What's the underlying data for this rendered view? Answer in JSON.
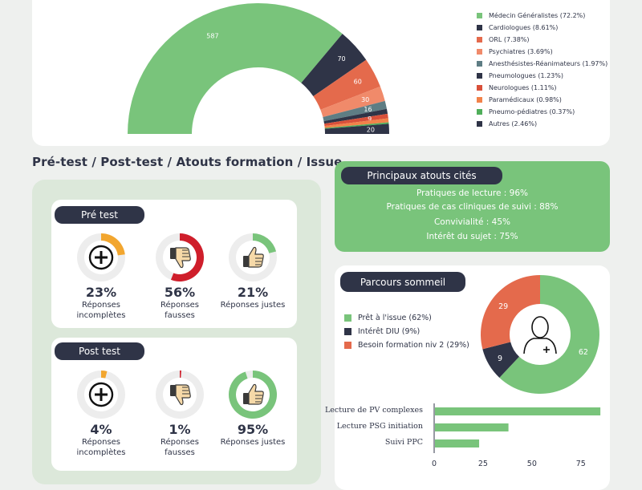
{
  "colors": {
    "green": "#79c47b",
    "navy": "#2f3447",
    "orange_red": "#e46a4c",
    "salmon": "#f08a6a",
    "grey_blue": "#5e7d84",
    "red": "#d9503a",
    "amber": "#f2a62f",
    "crimson": "#cf1e2b",
    "panel_green": "#dce8da"
  },
  "specialty": {
    "legend": [
      {
        "label": "Médecin Généralistes (72.2%)",
        "color": "#79c47b"
      },
      {
        "label": "Cardiologues (8.61%)",
        "color": "#2f3447"
      },
      {
        "label": "ORL (7.38%)",
        "color": "#e46a4c"
      },
      {
        "label": "Psychiatres (3.69%)",
        "color": "#f08a6a"
      },
      {
        "label": "Anesthésistes-Réanimateurs (1.97%)",
        "color": "#5e7d84"
      },
      {
        "label": "Pneumologues (1.23%)",
        "color": "#2f3447"
      },
      {
        "label": "Neurologues (1.11%)",
        "color": "#d9503a"
      },
      {
        "label": "Paramédicaux (0.98%)",
        "color": "#f2824a"
      },
      {
        "label": "Pneumo-pédiatres (0.37%)",
        "color": "#4fae5a"
      },
      {
        "label": "Autres (2.46%)",
        "color": "#2f3447"
      }
    ]
  },
  "section_title": "Pré-test / Post-test / Atouts formation / Issue",
  "pretest": {
    "title": "Pré test",
    "stats": [
      {
        "pct": "23%",
        "label1": "Réponses",
        "label2": "incomplètes",
        "icon": "plus-icon"
      },
      {
        "pct": "56%",
        "label1": "Réponses",
        "label2": "fausses",
        "icon": "thumbs-down-icon"
      },
      {
        "pct": "21%",
        "label1": "Réponses justes",
        "label2": "",
        "icon": "thumbs-up-icon"
      }
    ]
  },
  "posttest": {
    "title": "Post test",
    "stats": [
      {
        "pct": "4%",
        "label1": "Réponses",
        "label2": "incomplètes",
        "icon": "plus-icon"
      },
      {
        "pct": "1%",
        "label1": "Réponses",
        "label2": "fausses",
        "icon": "thumbs-down-icon"
      },
      {
        "pct": "95%",
        "label1": "Réponses justes",
        "label2": "",
        "icon": "thumbs-up-icon"
      }
    ]
  },
  "atouts": {
    "title": "Principaux atouts cités",
    "lines": [
      "Pratiques de lecture : 96%",
      "Pratiques de cas cliniques de suivi : 88%",
      "Convivialité : 45%",
      "Intérêt du sujet : 75%"
    ]
  },
  "parcours": {
    "title": "Parcours sommeil",
    "legend": [
      {
        "label": "Prêt à l'issue (62%)",
        "color": "#79c47b"
      },
      {
        "label": "Intérêt DIU (9%)",
        "color": "#2f3447"
      },
      {
        "label": "Besoin formation niv 2 (29%)",
        "color": "#e46a4c"
      }
    ]
  },
  "chart_data": [
    {
      "type": "pie",
      "subtype": "half-donut",
      "categories": [
        "Médecin Généralistes",
        "Cardiologues",
        "ORL",
        "Psychiatres",
        "Anesthésistes-Réanimateurs",
        "Pneumologues",
        "Neurologues",
        "Paramédicaux",
        "Pneumo-pédiatres",
        "Autres"
      ],
      "values": [
        587,
        70,
        60,
        30,
        16,
        10,
        9,
        8,
        3,
        20
      ],
      "labels": [
        "587",
        "70",
        "60",
        "30",
        "16",
        "",
        "9",
        "",
        "",
        "20"
      ],
      "colors": [
        "#79c47b",
        "#2f3447",
        "#e46a4c",
        "#f08a6a",
        "#5e7d84",
        "#2f3447",
        "#d9503a",
        "#f2824a",
        "#4fae5a",
        "#2f3447"
      ]
    },
    {
      "type": "pie",
      "subtype": "gauge-rings",
      "series": [
        {
          "name": "Pré test",
          "values": [
            23,
            56,
            21
          ]
        },
        {
          "name": "Post test",
          "values": [
            4,
            1,
            95
          ]
        }
      ],
      "colors": [
        "#f2a62f",
        "#cf1e2b",
        "#79c47b"
      ]
    },
    {
      "type": "pie",
      "subtype": "donut",
      "categories": [
        "Prêt à l'issue",
        "Intérêt DIU",
        "Besoin formation niv 2"
      ],
      "values": [
        62,
        9,
        29
      ],
      "labels": [
        "62",
        "9",
        "29"
      ],
      "colors": [
        "#79c47b",
        "#2f3447",
        "#e46a4c"
      ]
    },
    {
      "type": "bar",
      "orientation": "horizontal",
      "categories": [
        "Lecture de PV complexes",
        "Lecture PSG initiation",
        "Suivi PPC"
      ],
      "values": [
        85,
        38,
        23
      ],
      "xlim": [
        0,
        87
      ],
      "xticks": [
        0,
        25,
        50,
        75
      ],
      "color": "#79c47b"
    }
  ]
}
